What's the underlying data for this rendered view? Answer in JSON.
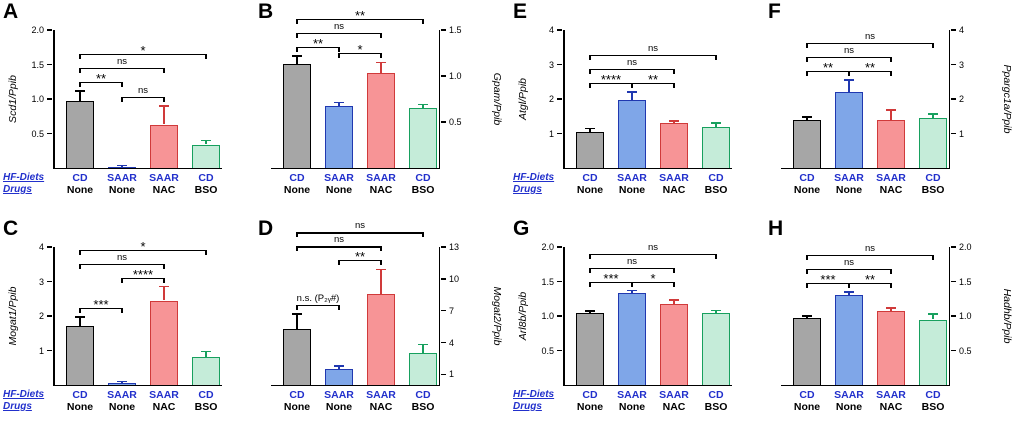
{
  "figure": {
    "colors": {
      "bar_fills": [
        "#a6a6a6",
        "#7fa6e8",
        "#f79496",
        "#c5ecd9"
      ],
      "bar_borders": [
        "#000000",
        "#2038b0",
        "#d03a3a",
        "#17a05e"
      ],
      "group_label_color": "#2230cc",
      "row_header_color": "#2230cc",
      "axis_color": "#000000"
    },
    "row_headers": {
      "diets": "HF-Diets",
      "drugs": "Drugs"
    },
    "groups": [
      {
        "diet": "CD",
        "drug": "None"
      },
      {
        "diet": "SAAR",
        "drug": "None"
      },
      {
        "diet": "SAAR",
        "drug": "NAC"
      },
      {
        "diet": "CD",
        "drug": "BSO"
      }
    ]
  },
  "chart_data": [
    {
      "panel": "A",
      "type": "bar",
      "ylabel": "Scd1/Ppib",
      "axis_side": "left",
      "ylim": [
        0,
        2.0
      ],
      "yticks": [
        "0.5",
        "1.0",
        "1.5",
        "2.0"
      ],
      "categories": [
        "CD None",
        "SAAR None",
        "SAAR NAC",
        "CD BSO"
      ],
      "values": [
        0.97,
        0.02,
        0.63,
        0.34
      ],
      "errors": [
        0.15,
        0.02,
        0.27,
        0.06
      ],
      "show_row_headers": true,
      "comparisons": [
        {
          "from": 0,
          "to": 3,
          "label": "*"
        },
        {
          "from": 0,
          "to": 2,
          "label": "ns"
        },
        {
          "from": 0,
          "to": 1,
          "label": "**"
        },
        {
          "from": 1,
          "to": 2,
          "label": "ns"
        }
      ]
    },
    {
      "panel": "B",
      "type": "bar",
      "ylabel": "Gpam/Ppib",
      "axis_side": "right",
      "ylim": [
        0,
        1.5
      ],
      "yticks": [
        "0.5",
        "1.0",
        "1.5"
      ],
      "categories": [
        "CD None",
        "SAAR None",
        "SAAR NAC",
        "CD BSO"
      ],
      "values": [
        1.13,
        0.67,
        1.03,
        0.65
      ],
      "errors": [
        0.09,
        0.04,
        0.12,
        0.04
      ],
      "show_row_headers": false,
      "comparisons": [
        {
          "from": 0,
          "to": 3,
          "label": "**"
        },
        {
          "from": 0,
          "to": 2,
          "label": "ns"
        },
        {
          "from": 0,
          "to": 1,
          "label": "**"
        },
        {
          "from": 1,
          "to": 2,
          "label": "*"
        }
      ]
    },
    {
      "panel": "E",
      "type": "bar",
      "ylabel": "Atgl/Ppib",
      "axis_side": "left",
      "ylim": [
        0,
        4
      ],
      "yticks": [
        "1",
        "2",
        "3",
        "4"
      ],
      "categories": [
        "CD None",
        "SAAR None",
        "SAAR NAC",
        "CD BSO"
      ],
      "values": [
        1.05,
        1.98,
        1.3,
        1.2
      ],
      "errors": [
        0.1,
        0.22,
        0.07,
        0.1
      ],
      "show_row_headers": true,
      "comparisons": [
        {
          "from": 0,
          "to": 3,
          "label": "ns"
        },
        {
          "from": 0,
          "to": 2,
          "label": "ns"
        },
        {
          "from": 0,
          "to": 1,
          "label": "****"
        },
        {
          "from": 1,
          "to": 2,
          "label": "**"
        }
      ]
    },
    {
      "panel": "F",
      "type": "bar",
      "ylabel": "Ppargc1a/Ppib",
      "axis_side": "right",
      "ylim": [
        0,
        4
      ],
      "yticks": [
        "1",
        "2",
        "3",
        "4"
      ],
      "categories": [
        "CD None",
        "SAAR None",
        "SAAR NAC",
        "CD BSO"
      ],
      "values": [
        1.4,
        2.2,
        1.4,
        1.45
      ],
      "errors": [
        0.08,
        0.35,
        0.28,
        0.12
      ],
      "show_row_headers": false,
      "comparisons": [
        {
          "from": 0,
          "to": 3,
          "label": "ns"
        },
        {
          "from": 0,
          "to": 2,
          "label": "ns"
        },
        {
          "from": 0,
          "to": 1,
          "label": "**"
        },
        {
          "from": 1,
          "to": 2,
          "label": "**"
        }
      ]
    },
    {
      "panel": "C",
      "type": "bar",
      "ylabel": "Mogat1/Ppib",
      "axis_side": "left",
      "ylim": [
        0,
        4
      ],
      "yticks": [
        "1",
        "2",
        "3",
        "4"
      ],
      "categories": [
        "CD None",
        "SAAR None",
        "SAAR NAC",
        "CD BSO"
      ],
      "values": [
        1.72,
        0.07,
        2.45,
        0.82
      ],
      "errors": [
        0.25,
        0.04,
        0.4,
        0.15
      ],
      "show_row_headers": true,
      "comparisons": [
        {
          "from": 0,
          "to": 3,
          "label": "*"
        },
        {
          "from": 0,
          "to": 2,
          "label": "ns"
        },
        {
          "from": 0,
          "to": 1,
          "label": "***"
        },
        {
          "from": 1,
          "to": 2,
          "label": "****"
        }
      ]
    },
    {
      "panel": "D",
      "type": "bar",
      "ylabel": "Mogat2/Ppib",
      "axis_side": "right",
      "ylim": [
        0,
        13
      ],
      "yticks": [
        "1",
        "4",
        "7",
        "10",
        "13"
      ],
      "categories": [
        "CD None",
        "SAAR None",
        "SAAR NAC",
        "CD BSO"
      ],
      "values": [
        5.3,
        1.5,
        8.6,
        3.0
      ],
      "errors": [
        1.4,
        0.3,
        2.3,
        0.8
      ],
      "show_row_headers": false,
      "comparisons": [
        {
          "from": 0,
          "to": 3,
          "label": "ns"
        },
        {
          "from": 0,
          "to": 2,
          "label": "ns"
        },
        {
          "from": 0,
          "to": 1,
          "label": "n.s. (P₂ᵧ#)"
        },
        {
          "from": 1,
          "to": 2,
          "label": "**"
        }
      ]
    },
    {
      "panel": "G",
      "type": "bar",
      "ylabel": "Arl8b/Ppib",
      "axis_side": "left",
      "ylim": [
        0,
        2.0
      ],
      "yticks": [
        "0.5",
        "1.0",
        "1.5",
        "2.0"
      ],
      "categories": [
        "CD None",
        "SAAR None",
        "SAAR NAC",
        "CD BSO"
      ],
      "values": [
        1.05,
        1.33,
        1.17,
        1.05
      ],
      "errors": [
        0.02,
        0.04,
        0.06,
        0.03
      ],
      "show_row_headers": true,
      "comparisons": [
        {
          "from": 0,
          "to": 3,
          "label": "ns"
        },
        {
          "from": 0,
          "to": 2,
          "label": "ns"
        },
        {
          "from": 0,
          "to": 1,
          "label": "***"
        },
        {
          "from": 1,
          "to": 2,
          "label": "*"
        }
      ]
    },
    {
      "panel": "H",
      "type": "bar",
      "ylabel": "Hadhb/Ppib",
      "axis_side": "right",
      "ylim": [
        0,
        2.0
      ],
      "yticks": [
        "0.5",
        "1.0",
        "1.5",
        "2.0"
      ],
      "categories": [
        "CD None",
        "SAAR None",
        "SAAR NAC",
        "CD BSO"
      ],
      "values": [
        0.97,
        1.3,
        1.07,
        0.95
      ],
      "errors": [
        0.03,
        0.05,
        0.05,
        0.08
      ],
      "show_row_headers": false,
      "comparisons": [
        {
          "from": 0,
          "to": 3,
          "label": "ns"
        },
        {
          "from": 0,
          "to": 2,
          "label": "ns"
        },
        {
          "from": 0,
          "to": 1,
          "label": "***"
        },
        {
          "from": 1,
          "to": 2,
          "label": "**"
        }
      ]
    }
  ]
}
